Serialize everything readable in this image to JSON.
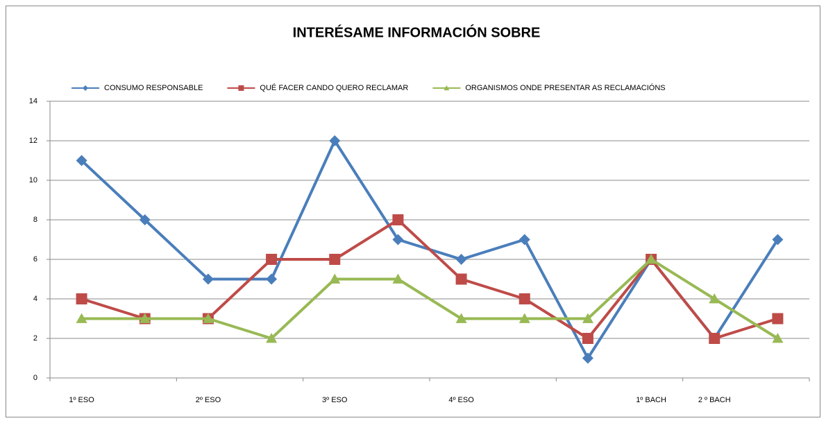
{
  "chart_data": {
    "type": "line",
    "title": "INTERÉSAME INFORMACIÓN SOBRE",
    "categories": [
      "1º ESO",
      null,
      "2º ESO",
      null,
      "3º ESO",
      null,
      "4º ESO",
      null,
      null,
      "1º BACH",
      "2 º BACH",
      null
    ],
    "series": [
      {
        "name": "CONSUMO RESPONSABLE",
        "color": "#4a7ebb",
        "marker": "diamond",
        "values": [
          11,
          8,
          5,
          5,
          12,
          7,
          6,
          7,
          1,
          6,
          2,
          7
        ]
      },
      {
        "name": "QUÉ FACER CANDO QUERO RECLAMAR",
        "color": "#be4b48",
        "marker": "square",
        "values": [
          4,
          3,
          3,
          6,
          6,
          8,
          5,
          4,
          2,
          6,
          2,
          3
        ]
      },
      {
        "name": "ORGANISMOS ONDE PRESENTAR AS RECLAMACIÓNS",
        "color": "#98b954",
        "marker": "triangle",
        "values": [
          3,
          3,
          3,
          2,
          5,
          5,
          3,
          3,
          3,
          6,
          4,
          2
        ]
      }
    ],
    "ylim": [
      0,
      14
    ],
    "yticks": [
      0,
      2,
      4,
      6,
      8,
      10,
      12,
      14
    ],
    "grid": true,
    "legend": "top"
  }
}
